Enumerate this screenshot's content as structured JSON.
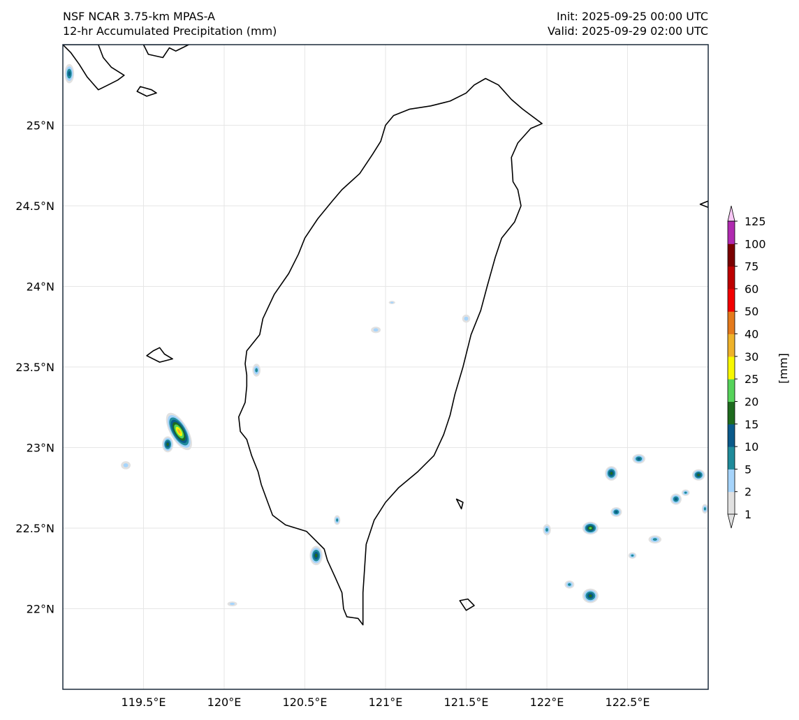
{
  "header": {
    "title_line1": "NSF NCAR 3.75-km MPAS-A",
    "title_line2": "12-hr Accumulated Precipitation (mm)",
    "init": "Init: 2025-09-25 00:00 UTC",
    "valid": "Valid: 2025-09-29 02:00 UTC"
  },
  "map": {
    "lon_range": [
      119.0,
      123.0
    ],
    "lat_range": [
      21.5,
      25.5
    ],
    "lon_ticks": [
      119.5,
      120.0,
      120.5,
      121.0,
      121.5,
      122.0,
      122.5
    ],
    "lon_tick_labels": [
      "119.5°E",
      "120°E",
      "120.5°E",
      "121°E",
      "121.5°E",
      "122°E",
      "122.5°E"
    ],
    "lat_ticks": [
      22.0,
      22.5,
      23.0,
      23.5,
      24.0,
      24.5,
      25.0
    ],
    "lat_tick_labels": [
      "22°N",
      "22.5°N",
      "23°N",
      "23.5°N",
      "24°N",
      "24.5°N",
      "25°N"
    ],
    "coastline": [
      [
        120.86,
        21.9
      ],
      [
        120.83,
        21.94
      ],
      [
        120.76,
        21.95
      ],
      [
        120.74,
        22.0
      ],
      [
        120.73,
        22.1
      ],
      [
        120.69,
        22.19
      ],
      [
        120.64,
        22.3
      ],
      [
        120.62,
        22.37
      ],
      [
        120.51,
        22.48
      ],
      [
        120.38,
        22.52
      ],
      [
        120.3,
        22.58
      ],
      [
        120.27,
        22.66
      ],
      [
        120.23,
        22.77
      ],
      [
        120.21,
        22.85
      ],
      [
        120.17,
        22.95
      ],
      [
        120.14,
        23.05
      ],
      [
        120.1,
        23.1
      ],
      [
        120.09,
        23.19
      ],
      [
        120.13,
        23.28
      ],
      [
        120.14,
        23.38
      ],
      [
        120.14,
        23.45
      ],
      [
        120.13,
        23.52
      ],
      [
        120.14,
        23.6
      ],
      [
        120.22,
        23.7
      ],
      [
        120.24,
        23.8
      ],
      [
        120.31,
        23.95
      ],
      [
        120.4,
        24.08
      ],
      [
        120.46,
        24.2
      ],
      [
        120.5,
        24.3
      ],
      [
        120.58,
        24.42
      ],
      [
        120.67,
        24.53
      ],
      [
        120.73,
        24.6
      ],
      [
        120.84,
        24.7
      ],
      [
        120.92,
        24.82
      ],
      [
        120.97,
        24.9
      ],
      [
        121.0,
        25.0
      ],
      [
        121.05,
        25.06
      ],
      [
        121.15,
        25.1
      ],
      [
        121.28,
        25.12
      ],
      [
        121.4,
        25.15
      ],
      [
        121.5,
        25.2
      ],
      [
        121.55,
        25.25
      ],
      [
        121.62,
        25.29
      ],
      [
        121.7,
        25.25
      ],
      [
        121.78,
        25.16
      ],
      [
        121.85,
        25.1
      ],
      [
        121.97,
        25.01
      ],
      [
        121.9,
        24.98
      ],
      [
        121.82,
        24.89
      ],
      [
        121.78,
        24.8
      ],
      [
        121.79,
        24.65
      ],
      [
        121.82,
        24.6
      ],
      [
        121.84,
        24.5
      ],
      [
        121.8,
        24.4
      ],
      [
        121.72,
        24.3
      ],
      [
        121.68,
        24.18
      ],
      [
        121.63,
        24.0
      ],
      [
        121.59,
        23.85
      ],
      [
        121.53,
        23.7
      ],
      [
        121.48,
        23.5
      ],
      [
        121.43,
        23.33
      ],
      [
        121.4,
        23.2
      ],
      [
        121.36,
        23.08
      ],
      [
        121.3,
        22.95
      ],
      [
        121.2,
        22.85
      ],
      [
        121.08,
        22.75
      ],
      [
        121.0,
        22.66
      ],
      [
        120.93,
        22.55
      ],
      [
        120.88,
        22.4
      ],
      [
        120.87,
        22.25
      ],
      [
        120.86,
        22.1
      ],
      [
        120.86,
        21.9
      ]
    ],
    "islands": [
      [
        [
          119.52,
          23.57
        ],
        [
          119.56,
          23.6
        ],
        [
          119.6,
          23.62
        ],
        [
          119.63,
          23.58
        ],
        [
          119.68,
          23.55
        ],
        [
          119.6,
          23.53
        ],
        [
          119.52,
          23.57
        ]
      ],
      [
        [
          121.46,
          22.05
        ],
        [
          121.51,
          22.06
        ],
        [
          121.55,
          22.02
        ],
        [
          121.5,
          21.99
        ],
        [
          121.46,
          22.05
        ]
      ],
      [
        [
          121.44,
          22.68
        ],
        [
          121.48,
          22.66
        ],
        [
          121.47,
          22.62
        ],
        [
          121.44,
          22.68
        ]
      ],
      [
        [
          119.22,
          25.5
        ],
        [
          119.25,
          25.42
        ],
        [
          119.3,
          25.36
        ],
        [
          119.38,
          25.31
        ],
        [
          119.34,
          25.28
        ],
        [
          119.28,
          25.25
        ],
        [
          119.22,
          25.22
        ],
        [
          119.15,
          25.3
        ],
        [
          119.1,
          25.38
        ],
        [
          119.05,
          25.45
        ],
        [
          119.0,
          25.5
        ],
        [
          119.22,
          25.5
        ]
      ],
      [
        [
          119.48,
          25.24
        ],
        [
          119.55,
          25.22
        ],
        [
          119.58,
          25.2
        ],
        [
          119.52,
          25.18
        ],
        [
          119.46,
          25.21
        ],
        [
          119.48,
          25.24
        ]
      ],
      [
        [
          119.5,
          25.5
        ],
        [
          119.53,
          25.44
        ],
        [
          119.62,
          25.42
        ],
        [
          119.66,
          25.48
        ],
        [
          119.7,
          25.46
        ],
        [
          119.78,
          25.5
        ],
        [
          119.5,
          25.5
        ]
      ],
      [
        [
          122.95,
          24.51
        ],
        [
          123.0,
          24.53
        ],
        [
          123.0,
          24.49
        ],
        [
          122.95,
          24.51
        ]
      ]
    ],
    "precip_cells": [
      {
        "lon": 119.72,
        "lat": 23.1,
        "level": 7,
        "rx": 0.055,
        "ry": 0.13,
        "rot": -30
      },
      {
        "lon": 119.65,
        "lat": 23.02,
        "level": 4,
        "rx": 0.035,
        "ry": 0.05,
        "rot": 0
      },
      {
        "lon": 119.04,
        "lat": 25.32,
        "level": 3,
        "rx": 0.03,
        "ry": 0.06,
        "rot": 0
      },
      {
        "lon": 120.2,
        "lat": 23.48,
        "level": 2,
        "rx": 0.025,
        "ry": 0.04,
        "rot": 0
      },
      {
        "lon": 120.57,
        "lat": 22.33,
        "level": 4,
        "rx": 0.04,
        "ry": 0.06,
        "rot": 0
      },
      {
        "lon": 120.7,
        "lat": 22.55,
        "level": 2,
        "rx": 0.02,
        "ry": 0.03,
        "rot": 0
      },
      {
        "lon": 120.94,
        "lat": 23.73,
        "level": 1,
        "rx": 0.03,
        "ry": 0.02,
        "rot": 0
      },
      {
        "lon": 122.0,
        "lat": 22.49,
        "level": 2,
        "rx": 0.025,
        "ry": 0.035,
        "rot": 0
      },
      {
        "lon": 122.27,
        "lat": 22.5,
        "level": 5,
        "rx": 0.05,
        "ry": 0.04,
        "rot": 0
      },
      {
        "lon": 122.27,
        "lat": 22.08,
        "level": 4,
        "rx": 0.05,
        "ry": 0.045,
        "rot": 0
      },
      {
        "lon": 122.14,
        "lat": 22.15,
        "level": 2,
        "rx": 0.03,
        "ry": 0.025,
        "rot": 0
      },
      {
        "lon": 122.4,
        "lat": 22.84,
        "level": 4,
        "rx": 0.04,
        "ry": 0.045,
        "rot": 0
      },
      {
        "lon": 122.43,
        "lat": 22.6,
        "level": 3,
        "rx": 0.035,
        "ry": 0.03,
        "rot": 0
      },
      {
        "lon": 122.57,
        "lat": 22.93,
        "level": 3,
        "rx": 0.04,
        "ry": 0.03,
        "rot": 0
      },
      {
        "lon": 122.53,
        "lat": 22.33,
        "level": 2,
        "rx": 0.025,
        "ry": 0.02,
        "rot": 0
      },
      {
        "lon": 122.67,
        "lat": 22.43,
        "level": 2,
        "rx": 0.04,
        "ry": 0.025,
        "rot": 0
      },
      {
        "lon": 122.8,
        "lat": 22.68,
        "level": 3,
        "rx": 0.035,
        "ry": 0.035,
        "rot": 0
      },
      {
        "lon": 122.86,
        "lat": 22.72,
        "level": 2,
        "rx": 0.025,
        "ry": 0.02,
        "rot": 0
      },
      {
        "lon": 122.94,
        "lat": 22.83,
        "level": 4,
        "rx": 0.04,
        "ry": 0.035,
        "rot": 0
      },
      {
        "lon": 122.98,
        "lat": 22.62,
        "level": 2,
        "rx": 0.02,
        "ry": 0.03,
        "rot": 0
      },
      {
        "lon": 119.39,
        "lat": 22.89,
        "level": 1,
        "rx": 0.03,
        "ry": 0.025,
        "rot": 0
      },
      {
        "lon": 120.05,
        "lat": 22.03,
        "level": 1,
        "rx": 0.03,
        "ry": 0.015,
        "rot": 0
      },
      {
        "lon": 121.5,
        "lat": 23.8,
        "level": 1,
        "rx": 0.025,
        "ry": 0.025,
        "rot": 0
      },
      {
        "lon": 121.04,
        "lat": 23.9,
        "level": 1,
        "rx": 0.02,
        "ry": 0.01,
        "rot": 0
      }
    ]
  },
  "colorbar": {
    "unit_label": "[mm]",
    "levels": [
      "1",
      "2",
      "5",
      "10",
      "15",
      "20",
      "25",
      "30",
      "40",
      "50",
      "60",
      "75",
      "100",
      "125"
    ],
    "colors": [
      "#e1e1e1",
      "#a6d4fb",
      "#1f8b9b",
      "#0a5a8a",
      "#1e6b1e",
      "#56d35a",
      "#f8f800",
      "#eeb22a",
      "#e47a1c",
      "#f20000",
      "#bd0000",
      "#7a0000",
      "#b02ab0",
      "#f7c7f5"
    ]
  }
}
